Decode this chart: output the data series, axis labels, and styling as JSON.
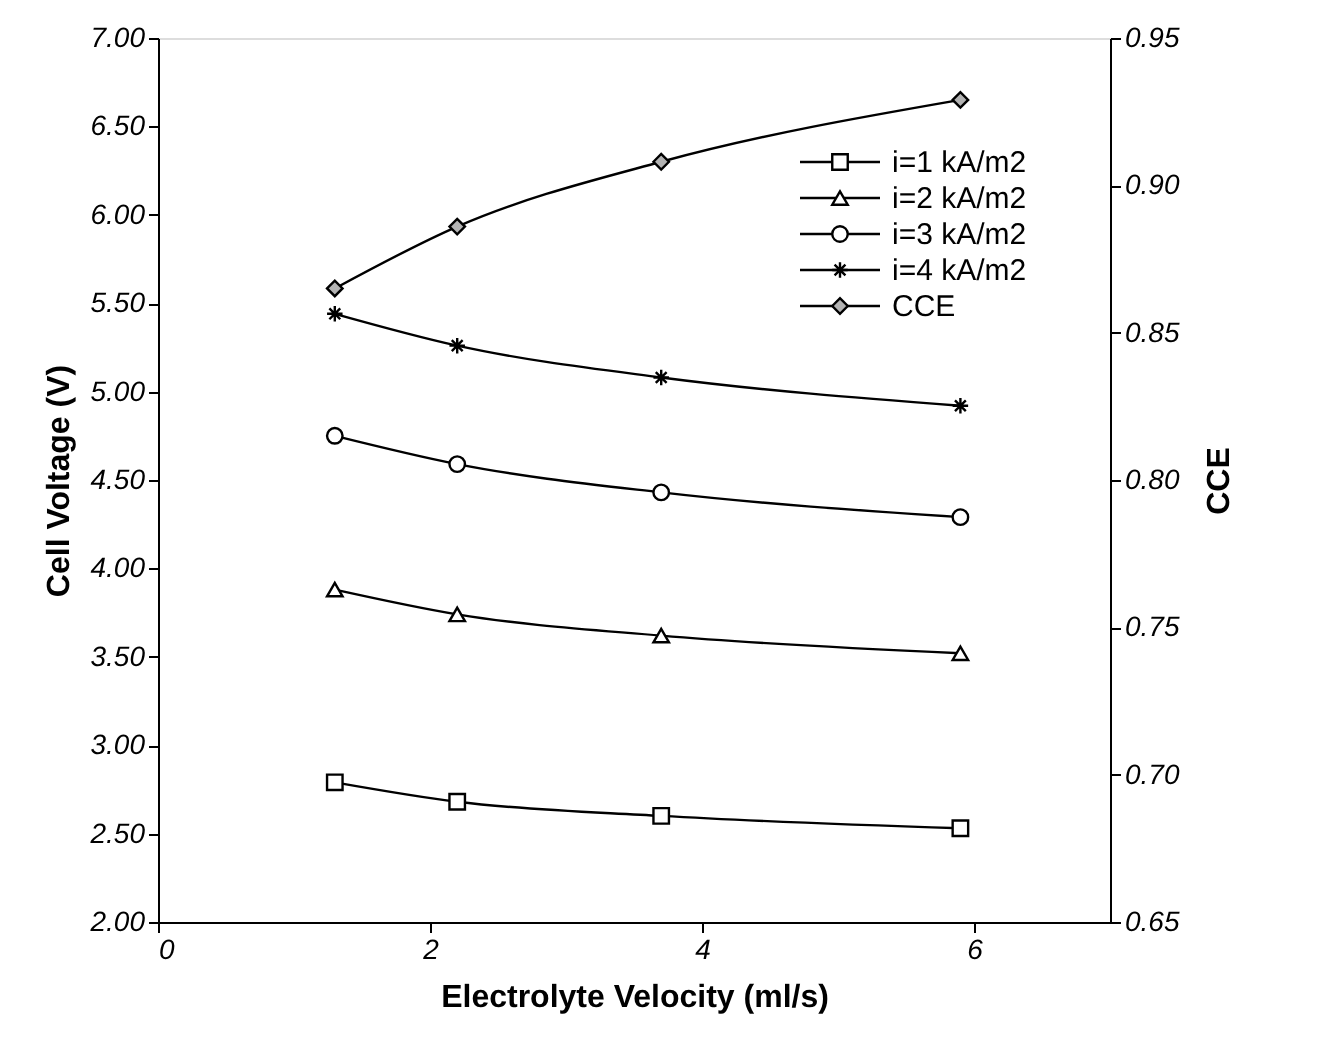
{
  "chart_data": {
    "type": "line",
    "xlabel": "Electrolyte Velocity (ml/s)",
    "ylabel": "Cell Voltage (V)",
    "y2label": "CCE",
    "xlim": [
      0,
      7
    ],
    "xticks": [
      0,
      2,
      4,
      6
    ],
    "ylim": [
      2,
      7
    ],
    "yticks": [
      {
        "value": 2,
        "label": "2.00"
      },
      {
        "value": 2.5,
        "label": "2.50"
      },
      {
        "value": 3,
        "label": "3.00"
      },
      {
        "value": 3.5,
        "label": "3.50"
      },
      {
        "value": 4,
        "label": "4.00"
      },
      {
        "value": 4.5,
        "label": "4.50"
      },
      {
        "value": 5,
        "label": "5.00"
      },
      {
        "value": 5.5,
        "label": "5.50"
      },
      {
        "value": 6,
        "label": "6.00"
      },
      {
        "value": 6.5,
        "label": "6.50"
      },
      {
        "value": 7,
        "label": "7.00"
      }
    ],
    "y2lim": [
      0.65,
      0.95
    ],
    "y2ticks": [
      {
        "value": 0.65,
        "label": "0.65"
      },
      {
        "value": 0.7,
        "label": "0.70"
      },
      {
        "value": 0.75,
        "label": "0.75"
      },
      {
        "value": 0.8,
        "label": "0.80"
      },
      {
        "value": 0.85,
        "label": "0.85"
      },
      {
        "value": 0.9,
        "label": "0.90"
      },
      {
        "value": 0.95,
        "label": "0.95"
      }
    ],
    "x": [
      1.3,
      2.2,
      3.7,
      5.9
    ],
    "series": [
      {
        "name": "i=1 kA/m2",
        "color": "#000000",
        "marker": "square",
        "values": [
          2.79,
          2.68,
          2.6,
          2.53
        ]
      },
      {
        "name": "i=2 kA/m2",
        "color": "#000000",
        "marker": "triangle",
        "values": [
          3.88,
          3.74,
          3.62,
          3.52
        ]
      },
      {
        "name": "i=3 kA/m2",
        "color": "#000000",
        "marker": "circle",
        "values": [
          4.75,
          4.59,
          4.43,
          4.29
        ]
      },
      {
        "name": "i=4 kA/m2",
        "color": "#000000",
        "marker": "cross",
        "values": [
          5.44,
          5.26,
          5.08,
          4.92
        ]
      },
      {
        "name": "CCE",
        "color": "#000000",
        "marker": "diamond",
        "axis": "y2",
        "values": [
          0.865,
          0.886,
          0.908,
          0.929
        ]
      }
    ],
    "grid": false,
    "legend": "top right",
    "line_style": "solid"
  }
}
